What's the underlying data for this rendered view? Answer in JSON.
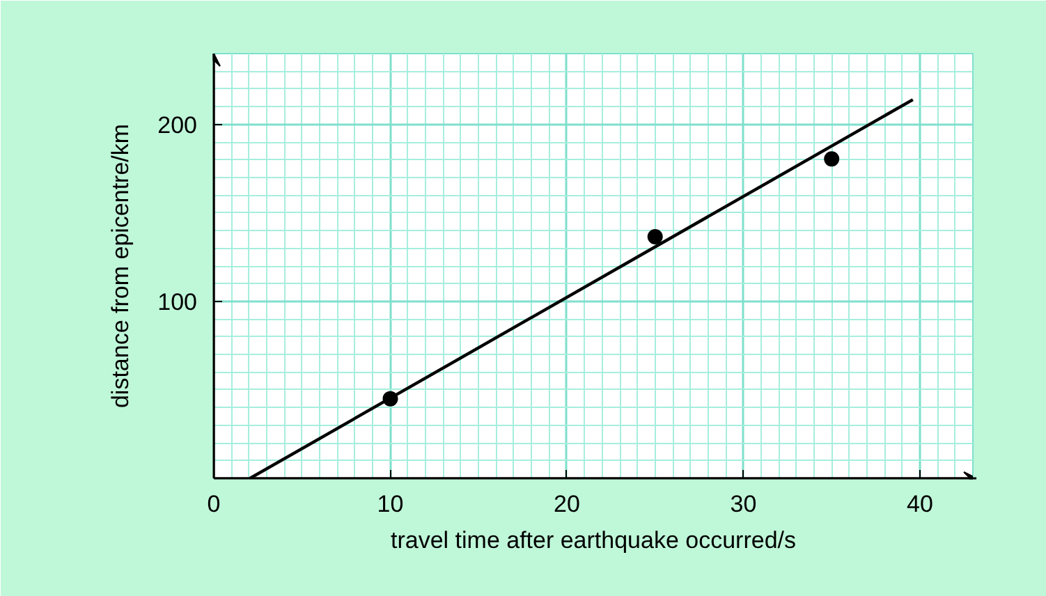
{
  "chart_data": {
    "type": "scatter",
    "xlabel": "travel time after earthquake occurred/s",
    "ylabel": "distance from epicentre/km",
    "x": [
      10,
      25,
      35
    ],
    "series": [
      {
        "color": "#000000",
        "values": [
          45,
          136.5,
          180.5
        ]
      },
      {
        "type": "line",
        "color": "#000000",
        "x": [
          2.05,
          39.6
        ],
        "values": [
          0,
          214
        ],
        "marker": "none"
      }
    ],
    "xlim": [
      0,
      43
    ],
    "ylim": [
      0,
      240
    ],
    "xticks": [
      0,
      10,
      20,
      30,
      40
    ],
    "yticks": [
      100,
      200
    ],
    "grid": true,
    "marker": "circle",
    "line_style": "solid"
  }
}
